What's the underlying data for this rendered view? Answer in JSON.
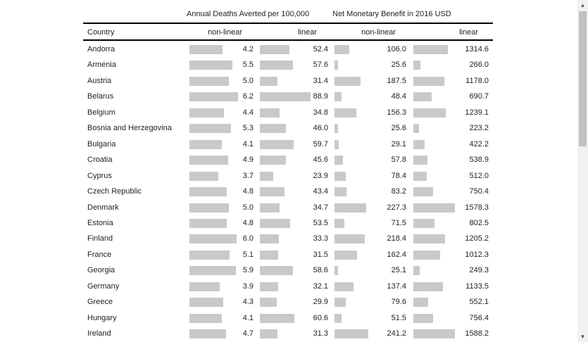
{
  "header": {
    "group1": "Annual Deaths Averted per 100,000",
    "group2": "Net Monetary Benefit in 2016 USD"
  },
  "columns": {
    "country": "Country",
    "nonlinear1": "non-linear",
    "linear1": "linear",
    "nonlinear2": "non-linear",
    "linear2": "linear"
  },
  "scrollbar": {
    "up_icon": "triangle-up",
    "down_icon": "triangle-down"
  },
  "colors": {
    "bar": "#c9c9c9",
    "rule": "#000000"
  },
  "chart_data": {
    "type": "table",
    "columns": [
      "Country",
      "Annual Deaths Averted per 100,000 non-linear",
      "Annual Deaths Averted per 100,000 linear",
      "Net Monetary Benefit in 2016 USD non-linear",
      "Net Monetary Benefit in 2016 USD linear"
    ],
    "rows": [
      {
        "country": "Andorra",
        "d_nl": "4.2",
        "d_l": "52.4",
        "b_nl": "106.0",
        "b_l": "1314.6"
      },
      {
        "country": "Armenia",
        "d_nl": "5.5",
        "d_l": "57.6",
        "b_nl": "25.6",
        "b_l": "266.0"
      },
      {
        "country": "Austria",
        "d_nl": "5.0",
        "d_l": "31.4",
        "b_nl": "187.5",
        "b_l": "1178.0"
      },
      {
        "country": "Belarus",
        "d_nl": "6.2",
        "d_l": "88.9",
        "b_nl": "48.4",
        "b_l": "690.7"
      },
      {
        "country": "Belgium",
        "d_nl": "4.4",
        "d_l": "34.8",
        "b_nl": "156.3",
        "b_l": "1239.1"
      },
      {
        "country": "Bosnia and Herzegovina",
        "d_nl": "5.3",
        "d_l": "46.0",
        "b_nl": "25.6",
        "b_l": "223.2"
      },
      {
        "country": "Bulgaria",
        "d_nl": "4.1",
        "d_l": "59.7",
        "b_nl": "29.1",
        "b_l": "422.2"
      },
      {
        "country": "Croatia",
        "d_nl": "4.9",
        "d_l": "45.6",
        "b_nl": "57.8",
        "b_l": "538.9"
      },
      {
        "country": "Cyprus",
        "d_nl": "3.7",
        "d_l": "23.9",
        "b_nl": "78.4",
        "b_l": "512.0"
      },
      {
        "country": "Czech Republic",
        "d_nl": "4.8",
        "d_l": "43.4",
        "b_nl": "83.2",
        "b_l": "750.4"
      },
      {
        "country": "Denmark",
        "d_nl": "5.0",
        "d_l": "34.7",
        "b_nl": "227.3",
        "b_l": "1578.3"
      },
      {
        "country": "Estonia",
        "d_nl": "4.8",
        "d_l": "53.5",
        "b_nl": "71.5",
        "b_l": "802.5"
      },
      {
        "country": "Finland",
        "d_nl": "6.0",
        "d_l": "33.3",
        "b_nl": "218.4",
        "b_l": "1205.2"
      },
      {
        "country": "France",
        "d_nl": "5.1",
        "d_l": "31.5",
        "b_nl": "162.4",
        "b_l": "1012.3"
      },
      {
        "country": "Georgia",
        "d_nl": "5.9",
        "d_l": "58.6",
        "b_nl": "25.1",
        "b_l": "249.3"
      },
      {
        "country": "Germany",
        "d_nl": "3.9",
        "d_l": "32.1",
        "b_nl": "137.4",
        "b_l": "1133.5"
      },
      {
        "country": "Greece",
        "d_nl": "4.3",
        "d_l": "29.9",
        "b_nl": "79.6",
        "b_l": "552.1"
      },
      {
        "country": "Hungary",
        "d_nl": "4.1",
        "d_l": "60.6",
        "b_nl": "51.5",
        "b_l": "756.4"
      },
      {
        "country": "Ireland",
        "d_nl": "4.7",
        "d_l": "31.3",
        "b_nl": "241.2",
        "b_l": "1588.2"
      }
    ]
  }
}
